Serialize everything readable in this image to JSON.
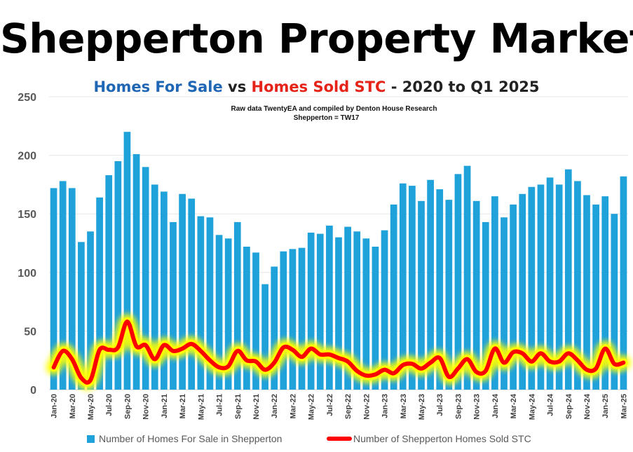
{
  "title": "Shepperton Property Market",
  "subtitle": {
    "part1": "Homes For Sale",
    "part2": " vs ",
    "part3": "Homes Sold STC",
    "part4": " - 2020 to Q1 2025"
  },
  "notes": {
    "line1": "Raw data TwentyEA and compiled by Denton House Research",
    "line2": "Shepperton  = TW17"
  },
  "colors": {
    "bars": "#1fa1da",
    "line": "#ff0000",
    "glow": "#ffff00",
    "subtitle_blue": "#1f66b5",
    "subtitle_red": "#e62319"
  },
  "chart_data": {
    "type": "bar",
    "ylim": [
      0,
      250
    ],
    "yticks": [
      0,
      50,
      100,
      150,
      200,
      250
    ],
    "grid": true,
    "legend_placement": "bottom",
    "categories": [
      "Jan-20",
      "Feb-20",
      "Mar-20",
      "Apr-20",
      "May-20",
      "Jun-20",
      "Jul-20",
      "Aug-20",
      "Sep-20",
      "Oct-20",
      "Nov-20",
      "Dec-20",
      "Jan-21",
      "Feb-21",
      "Mar-21",
      "Apr-21",
      "May-21",
      "Jun-21",
      "Jul-21",
      "Aug-21",
      "Sep-21",
      "Oct-21",
      "Nov-21",
      "Dec-21",
      "Jan-22",
      "Feb-22",
      "Mar-22",
      "Apr-22",
      "May-22",
      "Jun-22",
      "Jul-22",
      "Aug-22",
      "Sep-22",
      "Oct-22",
      "Nov-22",
      "Dec-22",
      "Jan-23",
      "Feb-23",
      "Mar-23",
      "Apr-23",
      "May-23",
      "Jun-23",
      "Jul-23",
      "Aug-23",
      "Sep-23",
      "Oct-23",
      "Nov-23",
      "Dec-23",
      "Jan-24",
      "Feb-24",
      "Mar-24",
      "Apr-24",
      "May-24",
      "Jun-24",
      "Jul-24",
      "Aug-24",
      "Sep-24",
      "Oct-24",
      "Nov-24",
      "Dec-24",
      "Jan-25",
      "Feb-25",
      "Mar-25"
    ],
    "tick_labels": [
      "Jan-20",
      "Mar-20",
      "May-20",
      "Jul-20",
      "Sep-20",
      "Nov-20",
      "Jan-21",
      "Mar-21",
      "May-21",
      "Jul-21",
      "Sep-21",
      "Nov-21",
      "Jan-22",
      "Mar-22",
      "May-22",
      "Jul-22",
      "Sep-22",
      "Nov-22",
      "Jan-23",
      "Mar-23",
      "May-23",
      "Jul-23",
      "Sep-23",
      "Nov-23",
      "Jan-24",
      "Mar-24",
      "May-24",
      "Jul-24",
      "Sep-24",
      "Nov-24",
      "Jan-25",
      "Mar-25"
    ],
    "series": [
      {
        "name": "Number of Homes For Sale in Shepperton",
        "type": "bar",
        "values": [
          172,
          178,
          172,
          126,
          135,
          164,
          183,
          195,
          220,
          201,
          190,
          175,
          169,
          143,
          167,
          163,
          148,
          147,
          132,
          129,
          143,
          122,
          117,
          90,
          105,
          118,
          120,
          121,
          134,
          133,
          140,
          130,
          139,
          135,
          129,
          122,
          136,
          158,
          176,
          174,
          161,
          179,
          171,
          162,
          184,
          191,
          161,
          143,
          165,
          147,
          158,
          167,
          173,
          175,
          181,
          175,
          188,
          178,
          166,
          158,
          165,
          150,
          182
        ]
      },
      {
        "name": "Number of Shepperton Homes Sold STC",
        "type": "line",
        "values": [
          19,
          33,
          26,
          10,
          8,
          34,
          34,
          36,
          58,
          37,
          38,
          26,
          38,
          33,
          35,
          39,
          33,
          25,
          19,
          20,
          33,
          25,
          24,
          17,
          23,
          36,
          34,
          28,
          35,
          30,
          30,
          27,
          24,
          16,
          12,
          13,
          17,
          14,
          21,
          22,
          18,
          23,
          27,
          11,
          18,
          26,
          15,
          16,
          35,
          23,
          32,
          31,
          24,
          31,
          24,
          24,
          31,
          25,
          17,
          18,
          35,
          22,
          23
        ]
      }
    ]
  }
}
